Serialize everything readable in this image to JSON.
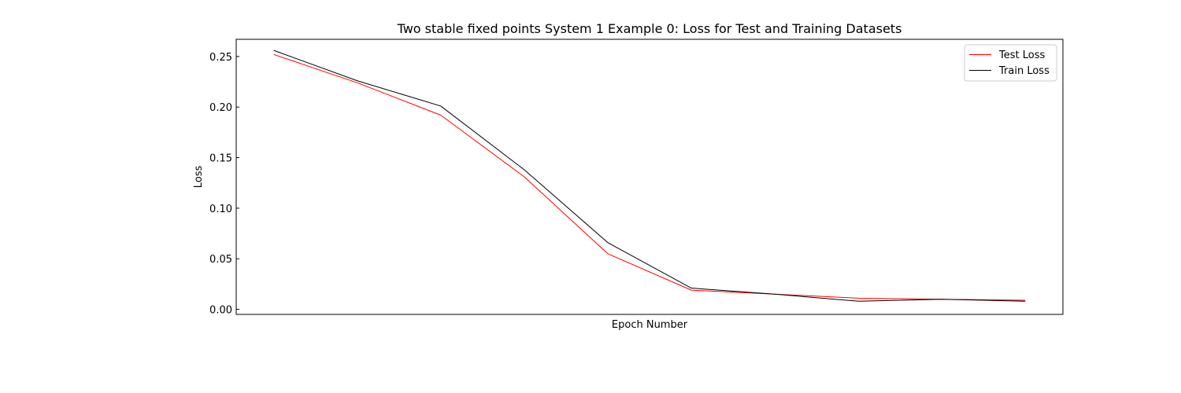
{
  "chart_data": {
    "type": "line",
    "title": "Two stable fixed points System 1 Example 0: Loss for Test and Training Datasets",
    "xlabel": "Epoch Number",
    "ylabel": "Loss",
    "x": [
      0,
      1,
      2,
      3,
      4,
      5,
      6,
      7,
      8,
      9
    ],
    "xlim": [
      -0.45,
      9.45
    ],
    "ylim": [
      -0.005,
      0.267
    ],
    "yticks": [
      0.0,
      0.05,
      0.1,
      0.15,
      0.2,
      0.25
    ],
    "ytick_labels": [
      "0.00",
      "0.05",
      "0.10",
      "0.15",
      "0.20",
      "0.25"
    ],
    "grid": false,
    "legend_position": "upper right",
    "series": [
      {
        "name": "Test Loss",
        "color": "#ff0000",
        "values": [
          0.252,
          0.224,
          0.192,
          0.131,
          0.055,
          0.019,
          0.015,
          0.011,
          0.01,
          0.009
        ]
      },
      {
        "name": "Train Loss",
        "color": "#000000",
        "values": [
          0.256,
          0.226,
          0.201,
          0.138,
          0.066,
          0.021,
          0.015,
          0.008,
          0.01,
          0.008
        ]
      }
    ]
  }
}
